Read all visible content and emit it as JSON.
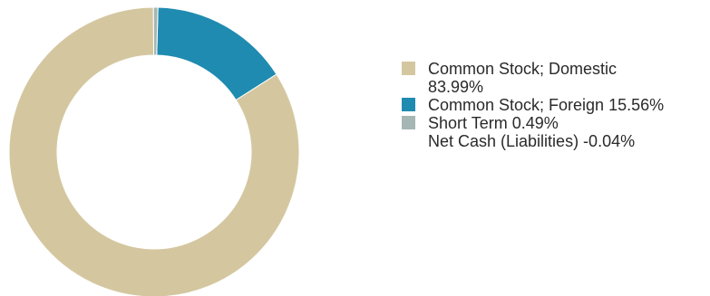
{
  "chart_data": {
    "type": "pie",
    "title": "",
    "legend_position": "right",
    "series": [
      {
        "name": "Common Stock; Domestic",
        "value": 83.99,
        "label": "83.99%",
        "color": "#d4c7a0"
      },
      {
        "name": "Common Stock; Foreign",
        "value": 15.56,
        "label": "15.56%",
        "color": "#1f8bb0"
      },
      {
        "name": "Short Term",
        "value": 0.49,
        "label": "0.49%",
        "color": "#a5b7b4"
      },
      {
        "name": "Net Cash (Liabilities)",
        "value": -0.04,
        "label": "-0.04%",
        "color": "#ffffff"
      }
    ]
  },
  "legend": {
    "items": [
      {
        "line1": "Common Stock; Domestic",
        "line2": "83.99%",
        "color": "#d4c7a0"
      },
      {
        "line1": "Common Stock; Foreign 15.56%",
        "line2": "",
        "color": "#1f8bb0"
      },
      {
        "line1": "Short Term 0.49%",
        "line2": "",
        "color": "#a5b7b4"
      },
      {
        "line1": "Net Cash (Liabilities) -0.04%",
        "line2": "",
        "color": ""
      }
    ]
  }
}
